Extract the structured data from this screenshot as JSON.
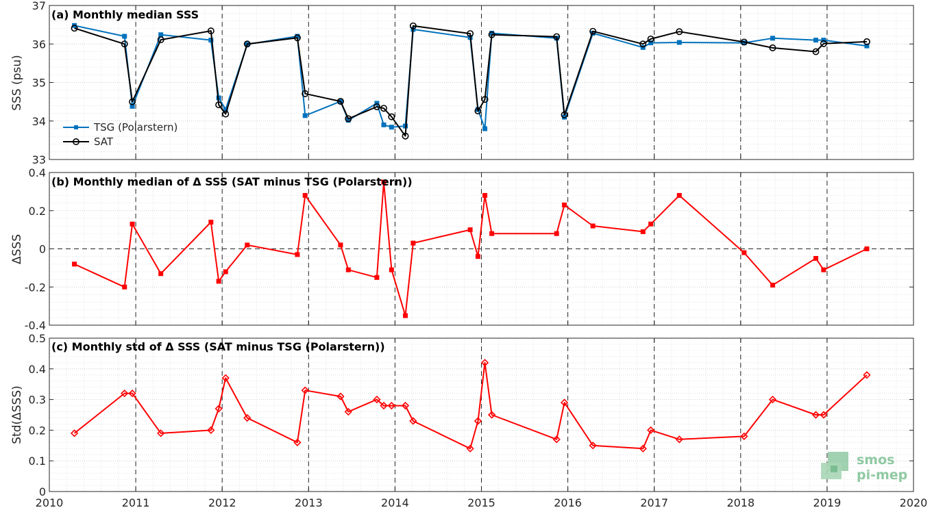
{
  "colors": {
    "tsg": "#0072bd",
    "sat": "#000000",
    "delta": "#ff0000",
    "logo": "#8fc9a2"
  },
  "logo": {
    "line1": "smos",
    "line2": "pi-mep"
  },
  "chart_data": [
    {
      "type": "line",
      "title": "(a) Monthly median SSS",
      "ylabel": "SSS (psu)",
      "xlim": [
        2010,
        2020
      ],
      "ylim": [
        33,
        37
      ],
      "yticks": [
        "33",
        "34",
        "35",
        "36",
        "37"
      ],
      "xticks": [
        "2010",
        "2011",
        "2012",
        "2013",
        "2014",
        "2015",
        "2016",
        "2017",
        "2018",
        "2019",
        "2020"
      ],
      "grid": true,
      "legend": "middle-left",
      "series": [
        {
          "name": "TSG (Polarstern)",
          "marker": "square",
          "x": [
            2010.29,
            2010.87,
            2010.96,
            2011.29,
            2011.87,
            2011.96,
            2012.04,
            2012.29,
            2012.87,
            2012.96,
            2013.37,
            2013.46,
            2013.79,
            2013.87,
            2013.96,
            2014.12,
            2014.21,
            2014.87,
            2014.96,
            2015.04,
            2015.12,
            2015.87,
            2015.96,
            2016.29,
            2016.87,
            2016.96,
            2017.29,
            2018.04,
            2018.37,
            2018.87,
            2018.96,
            2019.46
          ],
          "y": [
            36.48,
            36.2,
            34.38,
            36.24,
            36.1,
            34.6,
            34.3,
            35.99,
            36.2,
            34.14,
            34.51,
            34.02,
            34.46,
            33.9,
            33.84,
            33.87,
            36.38,
            36.17,
            34.3,
            33.8,
            36.28,
            36.15,
            34.1,
            36.28,
            35.91,
            36.03,
            36.04,
            36.03,
            36.15,
            36.1,
            36.1,
            35.95
          ]
        },
        {
          "name": "SAT",
          "marker": "circle",
          "x": [
            2010.29,
            2010.87,
            2010.96,
            2011.29,
            2011.87,
            2011.96,
            2012.04,
            2012.29,
            2012.87,
            2012.96,
            2013.37,
            2013.46,
            2013.79,
            2013.87,
            2013.96,
            2014.12,
            2014.21,
            2014.87,
            2014.96,
            2015.04,
            2015.12,
            2015.87,
            2015.96,
            2016.29,
            2016.87,
            2016.96,
            2017.29,
            2018.04,
            2018.37,
            2018.87,
            2018.96,
            2019.46
          ],
          "y": [
            36.41,
            36.0,
            34.5,
            36.11,
            36.34,
            34.42,
            34.18,
            36.0,
            36.16,
            34.71,
            34.51,
            34.06,
            34.37,
            34.33,
            34.11,
            33.61,
            36.47,
            36.27,
            34.26,
            34.56,
            36.24,
            36.19,
            34.16,
            36.33,
            36.0,
            36.13,
            36.32,
            36.05,
            35.9,
            35.8,
            36.01,
            36.06
          ]
        }
      ]
    },
    {
      "type": "line",
      "title": "(b) Monthly median of Δ SSS (SAT minus TSG (Polarstern))",
      "ylabel": "ΔSSS",
      "xlim": [
        2010,
        2020
      ],
      "ylim": [
        -0.4,
        0.4
      ],
      "yticks": [
        "-0.4",
        "-0.2",
        "0",
        "0.2",
        "0.4"
      ],
      "xticks": [
        "2010",
        "2011",
        "2012",
        "2013",
        "2014",
        "2015",
        "2016",
        "2017",
        "2018",
        "2019",
        "2020"
      ],
      "grid": true,
      "reference_line": 0,
      "series": [
        {
          "marker": "square",
          "x": [
            2010.29,
            2010.87,
            2010.96,
            2011.29,
            2011.87,
            2011.96,
            2012.04,
            2012.29,
            2012.87,
            2012.96,
            2013.37,
            2013.46,
            2013.79,
            2013.87,
            2013.96,
            2014.12,
            2014.21,
            2014.87,
            2014.96,
            2015.04,
            2015.12,
            2015.87,
            2015.96,
            2016.29,
            2016.87,
            2016.96,
            2017.29,
            2018.04,
            2018.37,
            2018.87,
            2018.96,
            2019.46
          ],
          "y": [
            -0.08,
            -0.2,
            0.13,
            -0.13,
            0.14,
            -0.17,
            -0.12,
            0.02,
            -0.03,
            0.28,
            0.02,
            -0.11,
            -0.15,
            0.35,
            -0.11,
            -0.35,
            0.03,
            0.1,
            -0.04,
            0.28,
            0.08,
            0.08,
            0.23,
            0.12,
            0.09,
            0.13,
            0.28,
            -0.02,
            -0.19,
            -0.05,
            -0.11,
            0.0
          ]
        }
      ]
    },
    {
      "type": "line",
      "title": "(c) Monthly std of Δ SSS (SAT minus TSG (Polarstern))",
      "ylabel": "Std(ΔSSS)",
      "xlim": [
        2010,
        2020
      ],
      "ylim": [
        0,
        0.5
      ],
      "yticks": [
        "0",
        "0.1",
        "0.2",
        "0.3",
        "0.4",
        "0.5"
      ],
      "xticks": [
        "2010",
        "2011",
        "2012",
        "2013",
        "2014",
        "2015",
        "2016",
        "2017",
        "2018",
        "2019",
        "2020"
      ],
      "grid": true,
      "series": [
        {
          "marker": "diamond",
          "x": [
            2010.29,
            2010.87,
            2010.96,
            2011.29,
            2011.87,
            2011.96,
            2012.04,
            2012.29,
            2012.87,
            2012.96,
            2013.37,
            2013.46,
            2013.79,
            2013.87,
            2013.96,
            2014.12,
            2014.21,
            2014.87,
            2014.96,
            2015.04,
            2015.12,
            2015.87,
            2015.96,
            2016.29,
            2016.87,
            2016.96,
            2017.29,
            2018.04,
            2018.37,
            2018.87,
            2018.96,
            2019.46
          ],
          "y": [
            0.19,
            0.32,
            0.32,
            0.19,
            0.2,
            0.27,
            0.37,
            0.24,
            0.16,
            0.33,
            0.31,
            0.26,
            0.3,
            0.28,
            0.28,
            0.28,
            0.23,
            0.14,
            0.23,
            0.42,
            0.25,
            0.17,
            0.29,
            0.15,
            0.14,
            0.2,
            0.17,
            0.18,
            0.3,
            0.25,
            0.25,
            0.38
          ]
        }
      ]
    }
  ]
}
